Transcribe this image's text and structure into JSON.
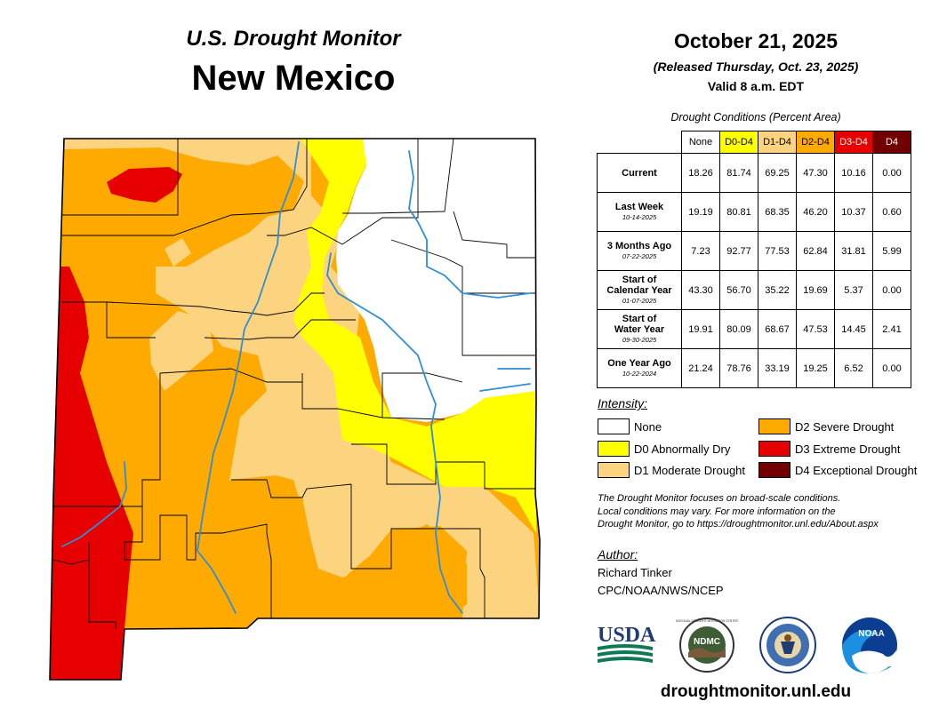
{
  "header": {
    "title_top": "U.S. Drought Monitor",
    "state": "New Mexico",
    "date": "October 21, 2025",
    "released": "(Released Thursday, Oct. 23, 2025)",
    "valid": "Valid 8 a.m. EDT"
  },
  "table": {
    "caption": "Drought Conditions (Percent Area)",
    "columns": [
      {
        "label": "None",
        "color": "#ffffff",
        "text_color": "#000000"
      },
      {
        "label": "D0-D4",
        "color": "#ffff00",
        "text_color": "#000000"
      },
      {
        "label": "D1-D4",
        "color": "#fcd37f",
        "text_color": "#000000"
      },
      {
        "label": "D2-D4",
        "color": "#ffaa00",
        "text_color": "#000000"
      },
      {
        "label": "D3-D4",
        "color": "#e60000",
        "text_color": "#ffffff"
      },
      {
        "label": "D4",
        "color": "#730000",
        "text_color": "#ffffff"
      }
    ],
    "rows": [
      {
        "label": "Current",
        "label2": "",
        "date": "",
        "values": [
          "18.26",
          "81.74",
          "69.25",
          "47.30",
          "10.16",
          "0.00"
        ]
      },
      {
        "label": "Last Week",
        "label2": "",
        "date": "10-14-2025",
        "values": [
          "19.19",
          "80.81",
          "68.35",
          "46.20",
          "10.37",
          "0.60"
        ]
      },
      {
        "label": "3 Months Ago",
        "label2": "",
        "date": "07-22-2025",
        "values": [
          "7.23",
          "92.77",
          "77.53",
          "62.84",
          "31.81",
          "5.99"
        ]
      },
      {
        "label": "Start of",
        "label2": "Calendar Year",
        "date": "01-07-2025",
        "values": [
          "43.30",
          "56.70",
          "35.22",
          "19.69",
          "5.37",
          "0.00"
        ]
      },
      {
        "label": "Start of",
        "label2": "Water Year",
        "date": "09-30-2025",
        "values": [
          "19.91",
          "80.09",
          "68.67",
          "47.53",
          "14.45",
          "2.41"
        ]
      },
      {
        "label": "One Year Ago",
        "label2": "",
        "date": "10-22-2024",
        "values": [
          "21.24",
          "78.76",
          "33.19",
          "19.25",
          "6.52",
          "0.00"
        ]
      }
    ]
  },
  "legend": {
    "title": "Intensity:",
    "items": [
      {
        "label": "None",
        "color": "#ffffff"
      },
      {
        "label": "D0 Abnormally Dry",
        "color": "#ffff00"
      },
      {
        "label": "D1 Moderate Drought",
        "color": "#fcd37f"
      },
      {
        "label": "D2 Severe Drought",
        "color": "#ffaa00"
      },
      {
        "label": "D3 Extreme Drought",
        "color": "#e60000"
      },
      {
        "label": "D4 Exceptional Drought",
        "color": "#730000"
      }
    ]
  },
  "note": {
    "line1": "The Drought Monitor focuses on broad-scale conditions.",
    "line2": "Local conditions may vary. For more information on the",
    "line3": "Drought Monitor, go to https://droughtmonitor.unl.edu/About.aspx"
  },
  "author": {
    "title": "Author:",
    "name": "Richard Tinker",
    "org": "CPC/NOAA/NWS/NCEP"
  },
  "logos": {
    "usda": "USDA",
    "ndmc": "NDMC",
    "ndmc_ring": "NATIONAL DROUGHT MITIGATION CENTER",
    "noaa": "NOAA"
  },
  "footer": {
    "url": "droughtmonitor.unl.edu"
  },
  "colors": {
    "none": "#ffffff",
    "d0": "#ffff00",
    "d1": "#fcd37f",
    "d2": "#ffaa00",
    "d3": "#e60000",
    "d4": "#730000",
    "river": "#2f8fd6"
  }
}
